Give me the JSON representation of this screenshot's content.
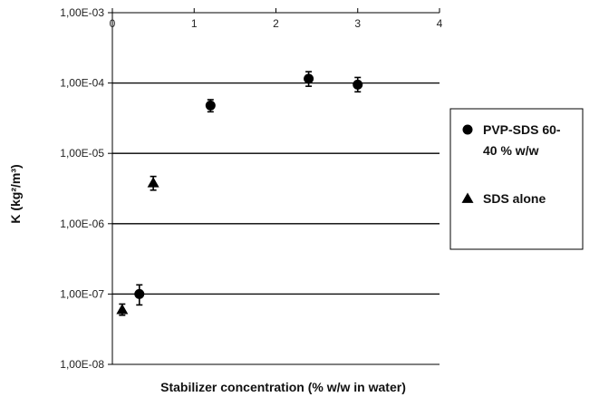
{
  "chart_data": {
    "type": "scatter",
    "title": "",
    "xlabel": "Stabilizer concentration (% w/w in water)",
    "ylabel": "K (kg²/m³)",
    "xlim": [
      0,
      4
    ],
    "ylim": [
      1e-08,
      0.001
    ],
    "y_scale": "log",
    "x_ticks": [
      "0",
      "1",
      "2",
      "3",
      "4"
    ],
    "y_ticks": [
      "1,00E-08",
      "1,00E-07",
      "1,00E-06",
      "1,00E-05",
      "1,00E-04",
      "1,00E-03"
    ],
    "x_axis_position": "top",
    "grid": "horizontal",
    "legend_position": "right",
    "series": [
      {
        "name": "PVP-SDS 60-40 % w/w",
        "marker": "circle",
        "color": "#000000",
        "points": [
          {
            "x": 0.33,
            "y": 1e-07,
            "err_low": 7e-08,
            "err_high": 1.35e-07
          },
          {
            "x": 1.2,
            "y": 4.8e-05,
            "err_low": 3.9e-05,
            "err_high": 5.8e-05
          },
          {
            "x": 2.4,
            "y": 0.000115,
            "err_low": 9e-05,
            "err_high": 0.000145
          },
          {
            "x": 3.0,
            "y": 9.5e-05,
            "err_low": 7.5e-05,
            "err_high": 0.00012
          }
        ]
      },
      {
        "name": "SDS alone",
        "marker": "triangle",
        "color": "#000000",
        "points": [
          {
            "x": 0.12,
            "y": 6e-08,
            "err_low": 5e-08,
            "err_high": 7.2e-08
          },
          {
            "x": 0.5,
            "y": 3.8e-06,
            "err_low": 3e-06,
            "err_high": 4.7e-06
          }
        ]
      }
    ],
    "legend": {
      "entries": [
        {
          "lines": [
            "PVP-SDS 60-",
            "40 % w/w"
          ],
          "marker": "circle"
        },
        {
          "lines": [
            "SDS alone"
          ],
          "marker": "triangle"
        }
      ]
    }
  }
}
